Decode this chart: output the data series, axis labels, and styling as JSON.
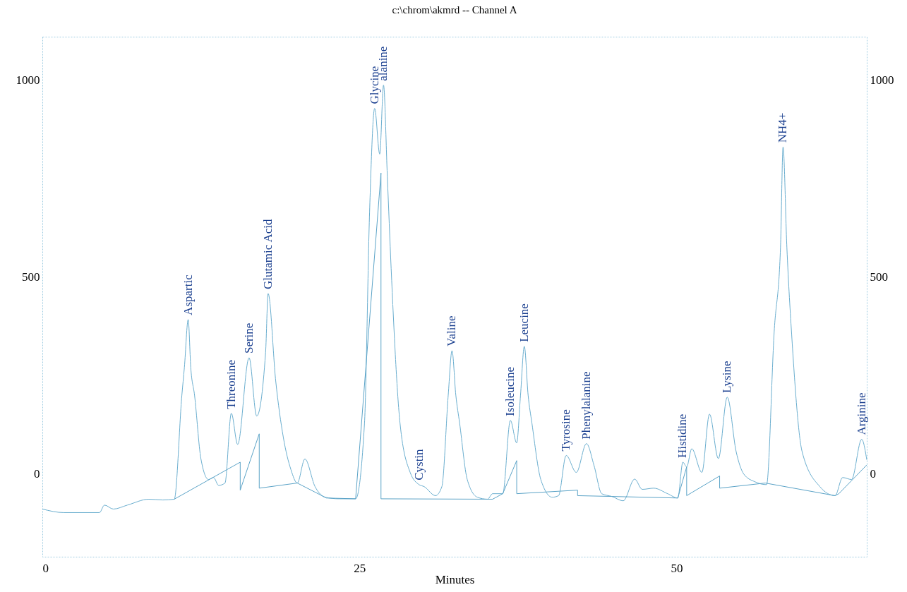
{
  "chart_data": {
    "type": "line",
    "title": "c:\\chrom\\akmrd -- Channel A",
    "xlabel": "Minutes",
    "xlim": [
      0,
      65
    ],
    "xticks": [
      0,
      25,
      50
    ],
    "ylim": [
      -210,
      1110
    ],
    "yticks": [
      0,
      500,
      1000
    ],
    "y2lim": [
      -210,
      1110
    ],
    "y2ticks": [
      0,
      500,
      1000
    ],
    "grid": false,
    "marker": "none",
    "line_style": "solid",
    "series": [
      {
        "color": "#6aaecf",
        "x": [
          0,
          1.7,
          4.5,
          4.9,
          5.6,
          6.7,
          8.4,
          9.5,
          10.4,
          11.0,
          11.2,
          11.5,
          11.7,
          12.0,
          12.5,
          13.1,
          13.5,
          13.9,
          14.4,
          14.9,
          15.4,
          16.3,
          16.9,
          17.6,
          17.8,
          18.4,
          19.0,
          19.6,
          20.1,
          20.7,
          21.5,
          22.3,
          23.4,
          24.7,
          25.4,
          25.8,
          26.2,
          26.6,
          26.9,
          27.2,
          27.5,
          28.2,
          29.0,
          29.7,
          30.1,
          31.0,
          31.5,
          32.0,
          32.3,
          32.6,
          32.9,
          33.5,
          34.3,
          35.1,
          35.5,
          36.3,
          36.9,
          37.4,
          37.7,
          38.0,
          38.3,
          38.6,
          39.3,
          40.2,
          40.7,
          41.3,
          42.1,
          42.9,
          43.5,
          44.1,
          44.9,
          45.8,
          46.7,
          47.3,
          48.2,
          49.3,
          50.1,
          50.5,
          50.8,
          51.2,
          52.0,
          52.6,
          53.3,
          54.0,
          54.7,
          55.3,
          56.2,
          57.1,
          57.7,
          58.2,
          58.4,
          58.7,
          59.1,
          59.9,
          61.3,
          62.5,
          63.1,
          63.8,
          64.6,
          65
        ],
        "values": [
          -89,
          -98,
          -98,
          -79,
          -89,
          -79,
          -64,
          -66,
          -64,
          200,
          271,
          392,
          271,
          200,
          39,
          -14,
          -9,
          -29,
          -23,
          154,
          75,
          295,
          147,
          308,
          458,
          236,
          93,
          11,
          -23,
          38,
          -32,
          -59,
          -63,
          -63,
          129,
          665,
          928,
          812,
          987,
          755,
          522,
          129,
          4,
          -27,
          -32,
          -55,
          -32,
          200,
          313,
          200,
          129,
          -14,
          -59,
          -64,
          -50,
          -50,
          136,
          79,
          200,
          324,
          200,
          129,
          -14,
          -59,
          -55,
          47,
          4,
          77,
          21,
          -50,
          -57,
          -68,
          -13,
          -39,
          -36,
          -50,
          -61,
          30,
          18,
          64,
          4,
          152,
          39,
          195,
          57,
          0,
          -20,
          -27,
          361,
          576,
          830,
          576,
          343,
          57,
          -32,
          -55,
          -9,
          -14,
          88,
          36
        ]
      },
      {
        "color": "#5ba3c7",
        "x": [
          10.4,
          20.1,
          22.4,
          null,
          24.7,
          35.5,
          null,
          36.3,
          44.9,
          null,
          50.1,
          57.0,
          62.5,
          null,
          62.8,
          65,
          null,
          15.6,
          15.6,
          null,
          17.1,
          17.1,
          null,
          26.7,
          26.7,
          null,
          37.4,
          37.4,
          null,
          42.2,
          42.2,
          null,
          50.8,
          50.8,
          null,
          53.4,
          53.4
        ],
        "values": [
          -64,
          -23,
          -61,
          null,
          -63,
          -64,
          null,
          -50,
          -57,
          null,
          -61,
          -23,
          -55,
          null,
          -50,
          23,
          null,
          30,
          -41,
          null,
          102,
          -36,
          null,
          764,
          -63,
          null,
          34,
          -50,
          null,
          -41,
          -55,
          null,
          18,
          -55,
          null,
          -5,
          -36
        ]
      }
    ],
    "annotations": [
      {
        "text": "Aspartic",
        "x": 11.5,
        "y": 392
      },
      {
        "text": "Threonine",
        "x": 14.9,
        "y": 154
      },
      {
        "text": "Serine",
        "x": 16.3,
        "y": 295
      },
      {
        "text": "Glutamic Acid",
        "x": 17.8,
        "y": 458
      },
      {
        "text": "Glycine",
        "x": 26.2,
        "y": 928
      },
      {
        "text": "alanine",
        "x": 26.9,
        "y": 987
      },
      {
        "text": "Cystin",
        "x": 29.7,
        "y": -27
      },
      {
        "text": "Valine",
        "x": 32.3,
        "y": 313
      },
      {
        "text": "Isoleucine",
        "x": 36.9,
        "y": 136
      },
      {
        "text": "Leucine",
        "x": 38.0,
        "y": 324
      },
      {
        "text": "Tyrosine",
        "x": 41.3,
        "y": 47
      },
      {
        "text": "Phenylalanine",
        "x": 42.9,
        "y": 77
      },
      {
        "text": "Histidine",
        "x": 50.5,
        "y": 30
      },
      {
        "text": "Lysine",
        "x": 54.0,
        "y": 195
      },
      {
        "text": "NH4+",
        "x": 58.4,
        "y": 830
      },
      {
        "text": "Arginine",
        "x": 64.6,
        "y": 88
      }
    ]
  }
}
